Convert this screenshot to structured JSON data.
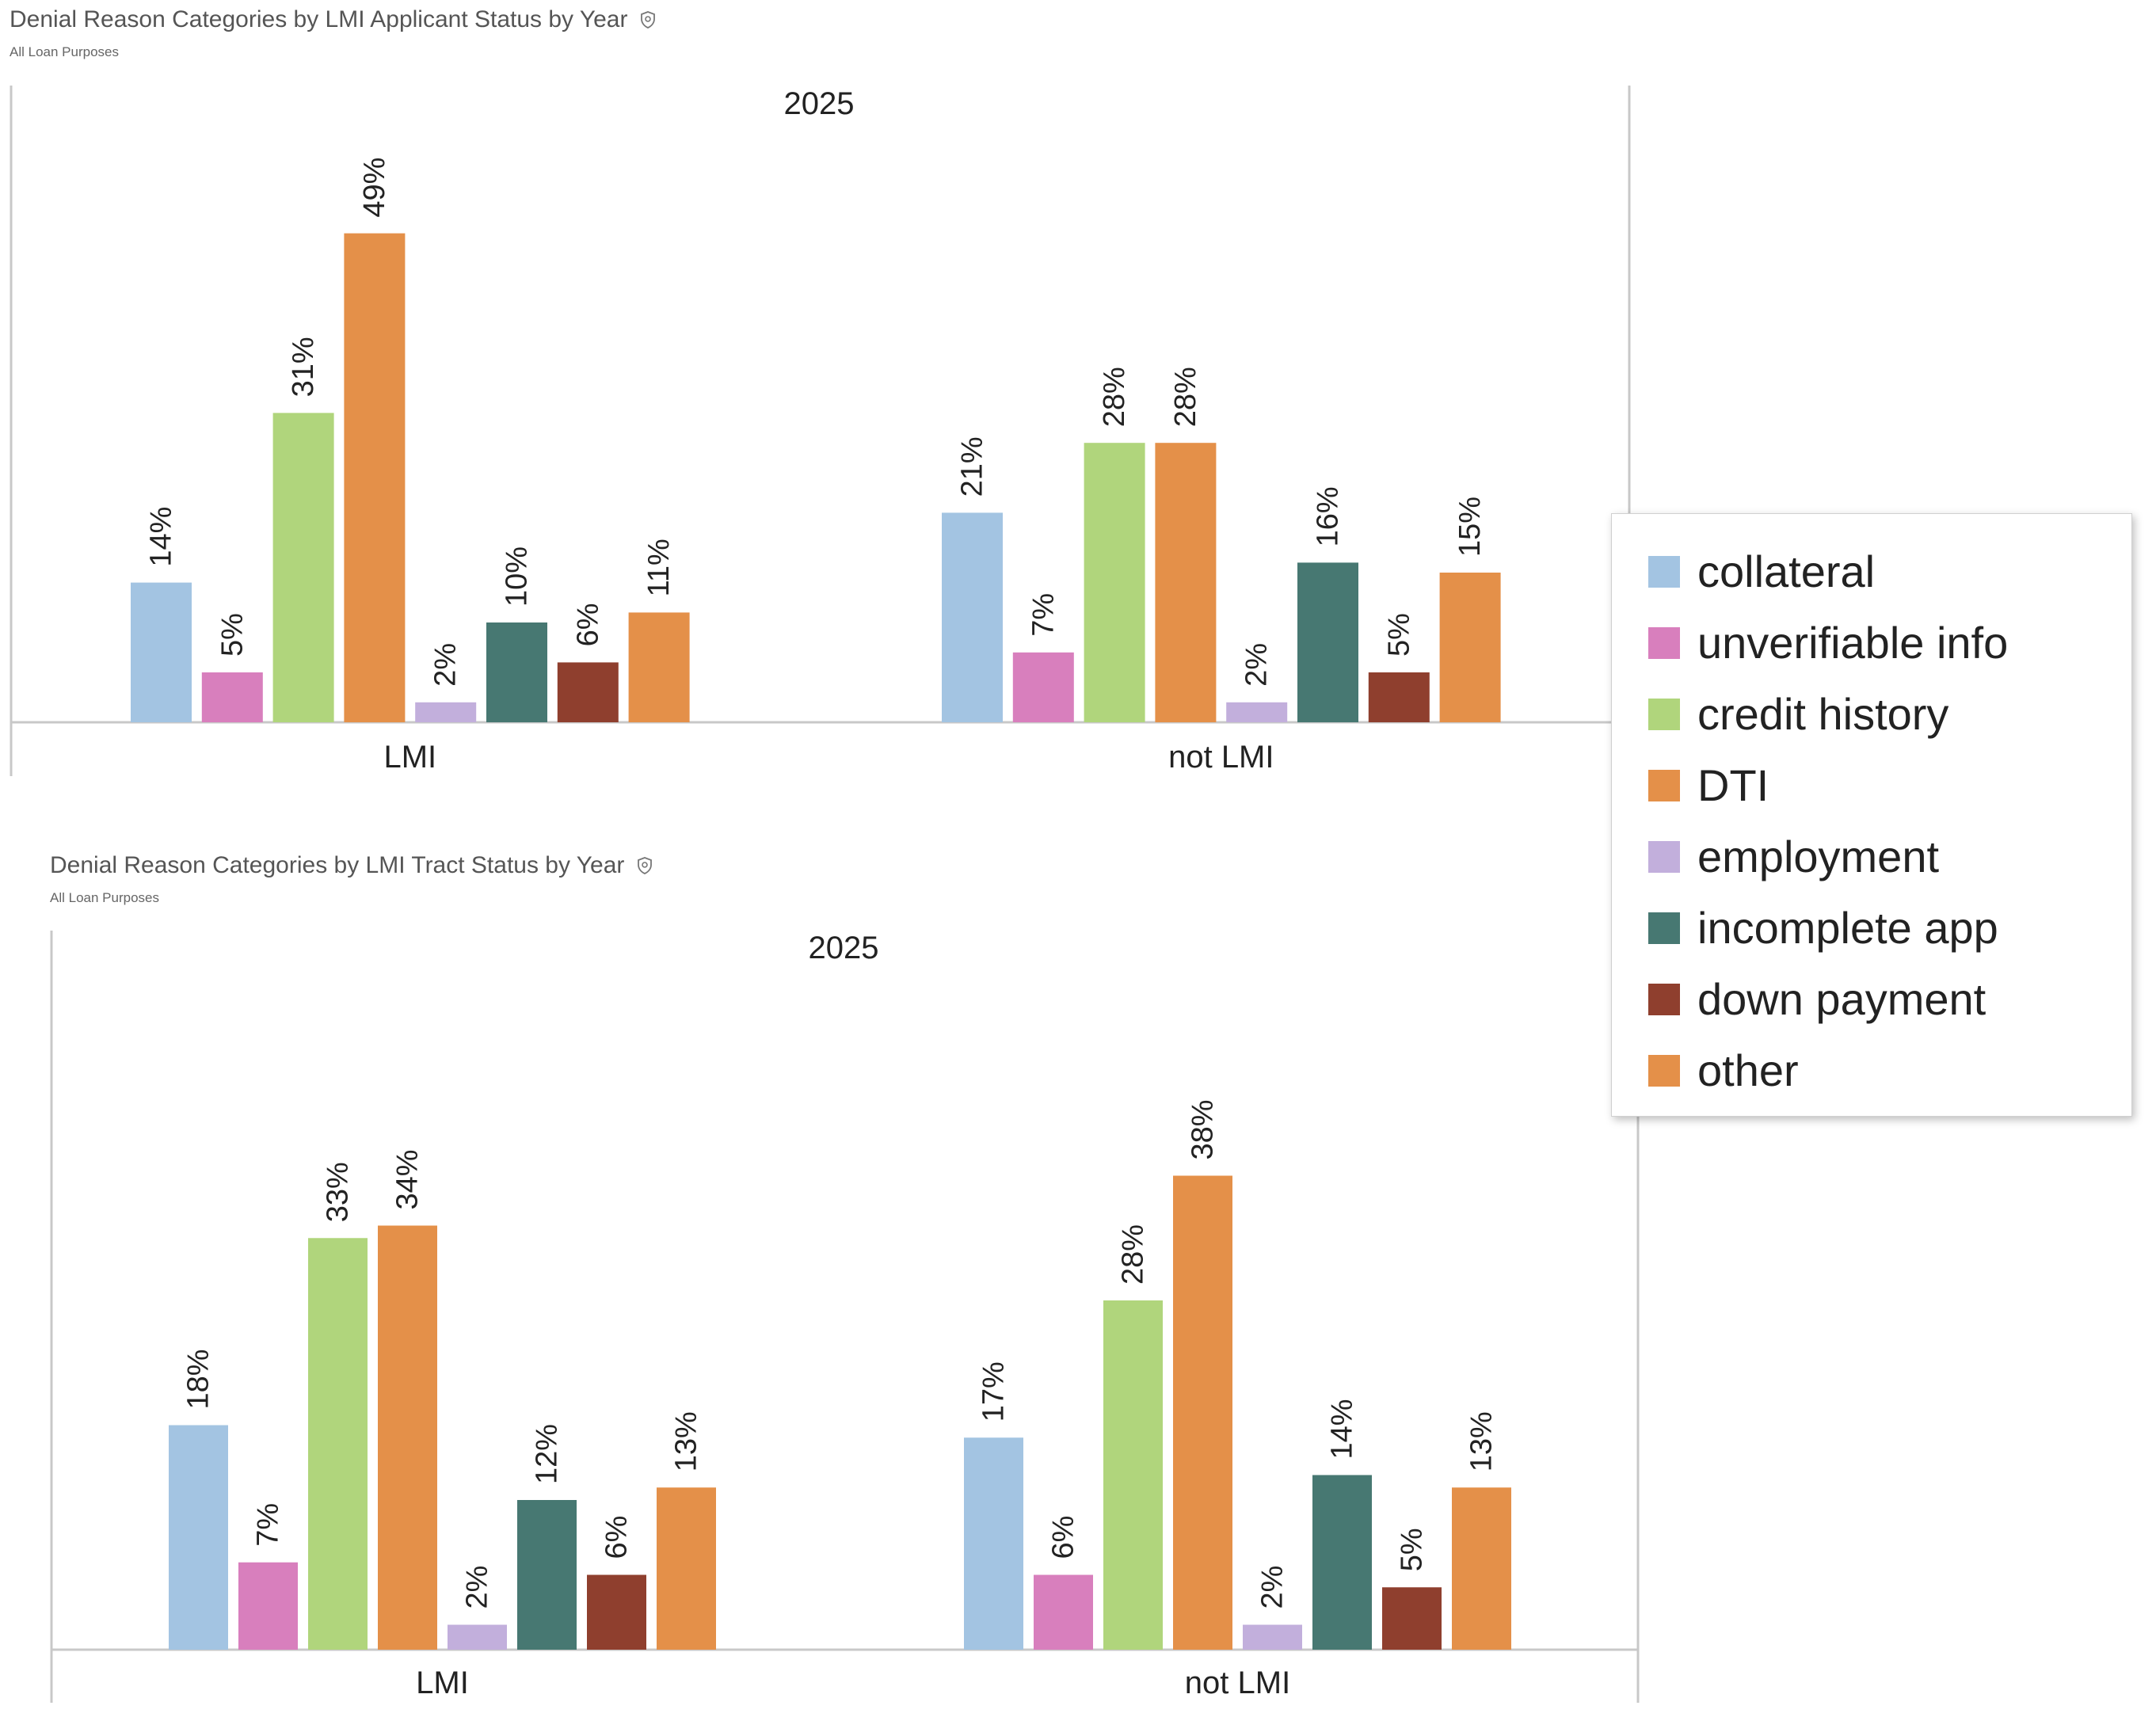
{
  "legend": [
    {
      "name": "collateral",
      "color": "#a3c4e2"
    },
    {
      "name": "unverifiable info",
      "color": "#d87fbd"
    },
    {
      "name": "credit history",
      "color": "#b0d57c"
    },
    {
      "name": "DTI",
      "color": "#e49049"
    },
    {
      "name": "employment",
      "color": "#c2afdc"
    },
    {
      "name": "incomplete app",
      "color": "#477872"
    },
    {
      "name": "down payment",
      "color": "#8f3f2e"
    },
    {
      "name": "other",
      "color": "#e49049"
    }
  ],
  "charts": [
    {
      "title": "Denial Reason Categories by LMI Applicant Status by Year",
      "subtitle": "All Loan Purposes"
    },
    {
      "title": "Denial Reason Categories by LMI Tract Status by Year",
      "subtitle": "All Loan Purposes"
    }
  ],
  "chart_data": [
    {
      "type": "bar",
      "title": "Denial Reason Categories by LMI Applicant Status by Year",
      "subtitle": "All Loan Purposes",
      "panel_title": "2025",
      "categories": [
        "LMI",
        "not LMI"
      ],
      "value_format": "percent",
      "ylim": [
        0,
        0.55
      ],
      "grid": false,
      "legend_position": "right",
      "series": [
        {
          "name": "collateral",
          "values": [
            0.14,
            0.21
          ]
        },
        {
          "name": "unverifiable info",
          "values": [
            0.05,
            0.07
          ]
        },
        {
          "name": "credit history",
          "values": [
            0.31,
            0.28
          ]
        },
        {
          "name": "DTI",
          "values": [
            0.49,
            0.28
          ]
        },
        {
          "name": "employment",
          "values": [
            0.02,
            0.02
          ]
        },
        {
          "name": "incomplete app",
          "values": [
            0.1,
            0.16
          ]
        },
        {
          "name": "down payment",
          "values": [
            0.06,
            0.05
          ]
        },
        {
          "name": "other",
          "values": [
            0.11,
            0.15
          ]
        }
      ]
    },
    {
      "type": "bar",
      "title": "Denial Reason Categories by LMI Tract Status by Year",
      "subtitle": "All Loan Purposes",
      "panel_title": "2025",
      "categories": [
        "LMI",
        "not LMI"
      ],
      "value_format": "percent",
      "ylim": [
        0,
        0.44
      ],
      "grid": false,
      "legend_position": "right",
      "series": [
        {
          "name": "collateral",
          "values": [
            0.18,
            0.17
          ]
        },
        {
          "name": "unverifiable info",
          "values": [
            0.07,
            0.06
          ]
        },
        {
          "name": "credit history",
          "values": [
            0.33,
            0.28
          ]
        },
        {
          "name": "DTI",
          "values": [
            0.34,
            0.38
          ]
        },
        {
          "name": "employment",
          "values": [
            0.02,
            0.02
          ]
        },
        {
          "name": "incomplete app",
          "values": [
            0.12,
            0.14
          ]
        },
        {
          "name": "down payment",
          "values": [
            0.06,
            0.05
          ]
        },
        {
          "name": "other",
          "values": [
            0.13,
            0.13
          ]
        }
      ]
    }
  ]
}
